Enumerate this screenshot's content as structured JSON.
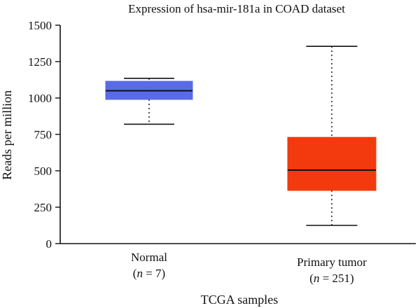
{
  "chart_data": {
    "type": "box",
    "title": "Expression of hsa-mir-181a in COAD dataset",
    "xlabel": "TCGA samples",
    "ylabel": "Reads per million",
    "ylim": [
      0,
      1500
    ],
    "yticks": [
      0,
      250,
      500,
      750,
      1000,
      1250,
      1500
    ],
    "grid": false,
    "legend": "none",
    "categories": [
      {
        "name": "Normal",
        "n_text": "7",
        "color": "#5a6be6",
        "min": 820,
        "q1": 990,
        "median": 1050,
        "q3": 1115,
        "max": 1135
      },
      {
        "name": "Primary tumor",
        "n_text": "251",
        "color": "#f23a0e",
        "min": 125,
        "q1": 365,
        "median": 505,
        "q3": 730,
        "max": 1355
      }
    ]
  }
}
